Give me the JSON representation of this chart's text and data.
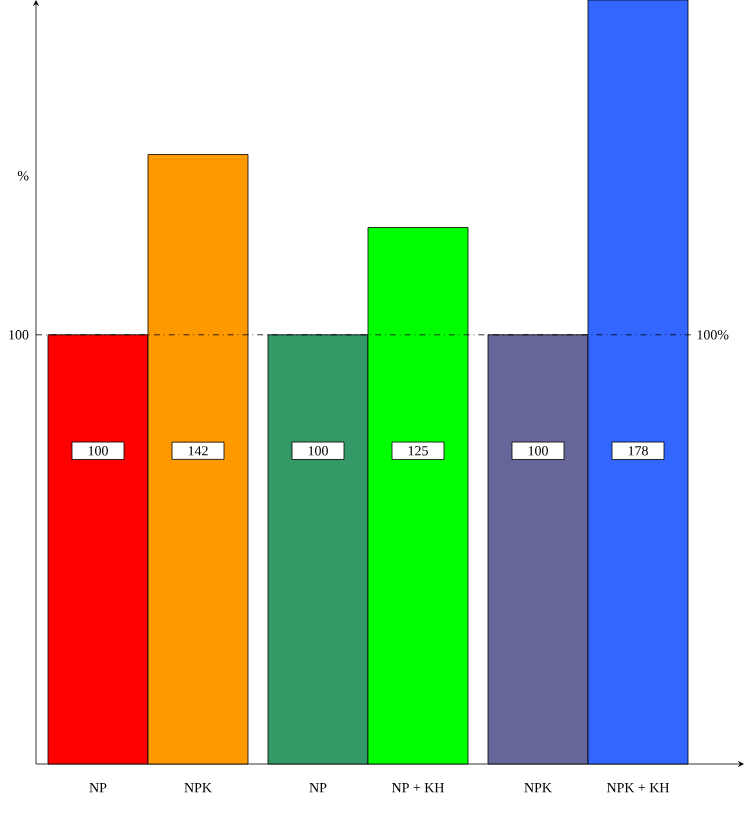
{
  "chart_data": {
    "type": "bar",
    "ylabel": "%",
    "categories": [
      "NP",
      "NPK",
      "NP",
      "NP + KH",
      "NPK",
      "NPK + KH"
    ],
    "values": [
      100,
      142,
      100,
      125,
      100,
      178
    ],
    "colors": [
      "#ff0000",
      "#ff9900",
      "#339966",
      "#00ff00",
      "#666699",
      "#3366ff"
    ],
    "ylim": [
      0,
      178
    ],
    "yticks": [
      100
    ],
    "ref_lines": [
      {
        "axis": "y",
        "value": 100,
        "label": "100%",
        "line_style": "dashdot"
      }
    ],
    "data_labels": true
  }
}
